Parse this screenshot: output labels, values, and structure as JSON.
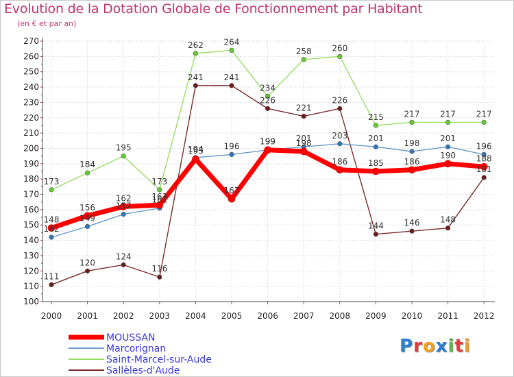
{
  "chart_data": {
    "type": "line",
    "title": "Evolution de la Dotation Globale de Fonctionnement par Habitant",
    "subtitle": "(en € et par an)",
    "xlabel": "",
    "ylabel": "",
    "categories": [
      "2000",
      "2001",
      "2002",
      "2003",
      "2004",
      "2005",
      "2006",
      "2007",
      "2008",
      "2009",
      "2010",
      "2011",
      "2012"
    ],
    "ylim": [
      100,
      270
    ],
    "yticks": [
      100,
      110,
      120,
      130,
      140,
      150,
      160,
      170,
      180,
      190,
      200,
      210,
      220,
      230,
      240,
      250,
      260,
      270
    ],
    "grid": true,
    "legend_position": "bottom-left",
    "series": [
      {
        "name": "MOUSSAN",
        "color": "#ff0000",
        "marker_color": "#ff0000",
        "values": [
          148,
          156,
          162,
          163,
          193,
          167,
          199,
          198,
          186,
          185,
          186,
          190,
          188
        ],
        "labels": [
          "148",
          "156",
          "162",
          "163",
          "193",
          "167",
          "199",
          "198",
          "186",
          "185",
          "186",
          "190",
          "188"
        ]
      },
      {
        "name": "Marcorignan",
        "color": "#6699cc",
        "marker_color": "#3377bb",
        "values": [
          142,
          149,
          157,
          161,
          194,
          196,
          199,
          201,
          203,
          201,
          198,
          201,
          196
        ],
        "labels": [
          "142",
          "149",
          "157",
          "161",
          "194",
          "196",
          "199",
          "201",
          "203",
          "201",
          "198",
          "201",
          "196"
        ]
      },
      {
        "name": "Saint-Marcel-sur-Aude",
        "color": "#99dd66",
        "marker_color": "#66cc33",
        "values": [
          173,
          184,
          195,
          173,
          262,
          264,
          234,
          258,
          260,
          215,
          217,
          217,
          217
        ],
        "labels": [
          "173",
          "184",
          "195",
          "173",
          "262",
          "264",
          "234",
          "258",
          "260",
          "215",
          "217",
          "217",
          "217"
        ]
      },
      {
        "name": "Sallèles-d'Aude",
        "color": "#7a2a2a",
        "marker_color": "#6b1a1a",
        "values": [
          111,
          120,
          124,
          116,
          241,
          241,
          226,
          221,
          226,
          144,
          146,
          148,
          181
        ],
        "labels": [
          "111",
          "120",
          "124",
          "116",
          "241",
          "241",
          "226",
          "221",
          "226",
          "144",
          "146",
          "148",
          "181"
        ]
      }
    ]
  },
  "legend": {
    "items": [
      "MOUSSAN",
      "Marcorignan",
      "Saint-Marcel-sur-Aude",
      "Sallèles-d'Aude"
    ]
  },
  "logo": {
    "text": "Proxiti",
    "letters": [
      "P",
      "r",
      "o",
      "x",
      "i",
      "t",
      "i"
    ],
    "colors": [
      "#2a7fd0",
      "#e23c3c",
      "#f0a020",
      "#2a7fd0",
      "#56b845",
      "#e23c3c",
      "#f0a020"
    ]
  }
}
